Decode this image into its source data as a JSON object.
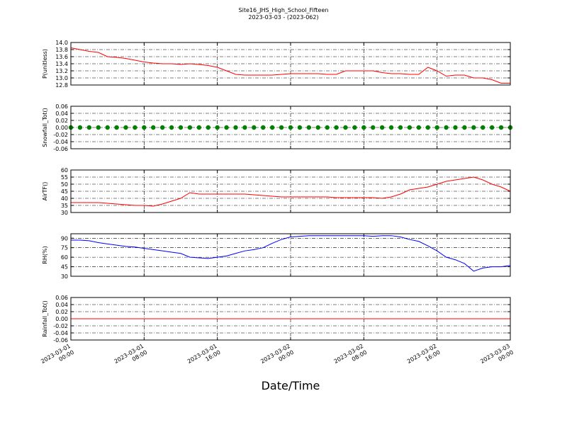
{
  "title": "Site16_JHS_High_School_Fifteen",
  "subtitle": "2023-03-03 - (2023-062)",
  "xlabel": "Date/Time",
  "chart_data": [
    {
      "type": "line",
      "ylabel": "P(unitless)",
      "color": "#ff0000",
      "x": [
        "2023-03-01 00:00",
        "2023-03-01 01:00",
        "2023-03-01 02:00",
        "2023-03-01 03:00",
        "2023-03-01 04:00",
        "2023-03-01 05:00",
        "2023-03-01 06:00",
        "2023-03-01 07:00",
        "2023-03-01 08:00",
        "2023-03-01 09:00",
        "2023-03-01 10:00",
        "2023-03-01 11:00",
        "2023-03-01 12:00",
        "2023-03-01 13:00",
        "2023-03-01 14:00",
        "2023-03-01 15:00",
        "2023-03-01 16:00",
        "2023-03-01 17:00",
        "2023-03-01 18:00",
        "2023-03-01 19:00",
        "2023-03-01 20:00",
        "2023-03-01 21:00",
        "2023-03-01 22:00",
        "2023-03-01 23:00",
        "2023-03-02 00:00",
        "2023-03-02 01:00",
        "2023-03-02 02:00",
        "2023-03-02 03:00",
        "2023-03-02 04:00",
        "2023-03-02 05:00",
        "2023-03-02 06:00",
        "2023-03-02 07:00",
        "2023-03-02 08:00",
        "2023-03-02 09:00",
        "2023-03-02 10:00",
        "2023-03-02 11:00",
        "2023-03-02 12:00",
        "2023-03-02 13:00",
        "2023-03-02 14:00",
        "2023-03-02 15:00",
        "2023-03-02 16:00",
        "2023-03-02 17:00",
        "2023-03-02 18:00",
        "2023-03-02 19:00",
        "2023-03-02 20:00",
        "2023-03-02 21:00",
        "2023-03-02 22:00",
        "2023-03-02 23:00",
        "2023-03-03 00:00"
      ],
      "values": [
        13.85,
        13.8,
        13.75,
        13.72,
        13.6,
        13.58,
        13.55,
        13.5,
        13.45,
        13.42,
        13.4,
        13.4,
        13.38,
        13.4,
        13.38,
        13.35,
        13.3,
        13.2,
        13.1,
        13.08,
        13.08,
        13.08,
        13.08,
        13.1,
        13.12,
        13.12,
        13.12,
        13.12,
        13.1,
        13.1,
        13.2,
        13.2,
        13.2,
        13.2,
        13.15,
        13.12,
        13.12,
        13.1,
        13.1,
        13.3,
        13.2,
        13.05,
        13.08,
        13.08,
        13.0,
        13.0,
        12.95,
        12.85,
        12.85
      ],
      "ylim": [
        12.8,
        14.0
      ],
      "yticks": [
        12.8,
        {
          "value": 13,
          "label": "13.0"
        },
        13.2,
        13.4,
        13.6,
        13.8,
        {
          "value": 14,
          "label": "14.0"
        }
      ]
    },
    {
      "type": "scatter",
      "ylabel": "Snowfall_Tot()",
      "color": "#008000",
      "x": [
        "2023-03-01 00:00",
        "2023-03-01 01:00",
        "2023-03-01 02:00",
        "2023-03-01 03:00",
        "2023-03-01 04:00",
        "2023-03-01 05:00",
        "2023-03-01 06:00",
        "2023-03-01 07:00",
        "2023-03-01 08:00",
        "2023-03-01 09:00",
        "2023-03-01 10:00",
        "2023-03-01 11:00",
        "2023-03-01 12:00",
        "2023-03-01 13:00",
        "2023-03-01 14:00",
        "2023-03-01 15:00",
        "2023-03-01 16:00",
        "2023-03-01 17:00",
        "2023-03-01 18:00",
        "2023-03-01 19:00",
        "2023-03-01 20:00",
        "2023-03-01 21:00",
        "2023-03-01 22:00",
        "2023-03-01 23:00",
        "2023-03-02 00:00",
        "2023-03-02 01:00",
        "2023-03-02 02:00",
        "2023-03-02 03:00",
        "2023-03-02 04:00",
        "2023-03-02 05:00",
        "2023-03-02 06:00",
        "2023-03-02 07:00",
        "2023-03-02 08:00",
        "2023-03-02 09:00",
        "2023-03-02 10:00",
        "2023-03-02 11:00",
        "2023-03-02 12:00",
        "2023-03-02 13:00",
        "2023-03-02 14:00",
        "2023-03-02 15:00",
        "2023-03-02 16:00",
        "2023-03-02 17:00",
        "2023-03-02 18:00",
        "2023-03-02 19:00",
        "2023-03-02 20:00",
        "2023-03-02 21:00",
        "2023-03-02 22:00",
        "2023-03-02 23:00",
        "2023-03-03 00:00"
      ],
      "values": [
        0,
        0,
        0,
        0,
        0,
        0,
        0,
        0,
        0,
        0,
        0,
        0,
        0,
        0,
        0,
        0,
        0,
        0,
        0,
        0,
        0,
        0,
        0,
        0,
        0,
        0,
        0,
        0,
        0,
        0,
        0,
        0,
        0,
        0,
        0,
        0,
        0,
        0,
        0,
        0,
        0,
        0,
        0,
        0,
        0,
        0,
        0,
        0,
        0
      ],
      "ylim": [
        -0.06,
        0.06
      ],
      "yticks": [
        {
          "value": -0.06,
          "label": "-0.06"
        },
        {
          "value": -0.04,
          "label": "-0.04"
        },
        {
          "value": -0.02,
          "label": "-0.02"
        },
        {
          "value": 0,
          "label": "0.00"
        },
        {
          "value": 0.02,
          "label": "0.02"
        },
        {
          "value": 0.04,
          "label": "0.04"
        },
        {
          "value": 0.06,
          "label": "0.06"
        }
      ]
    },
    {
      "type": "line",
      "ylabel": "AirTF()",
      "color": "#ff0000",
      "x": [
        "2023-03-01 00:00",
        "2023-03-01 01:00",
        "2023-03-01 02:00",
        "2023-03-01 03:00",
        "2023-03-01 04:00",
        "2023-03-01 05:00",
        "2023-03-01 06:00",
        "2023-03-01 07:00",
        "2023-03-01 08:00",
        "2023-03-01 09:00",
        "2023-03-01 10:00",
        "2023-03-01 11:00",
        "2023-03-01 12:00",
        "2023-03-01 13:00",
        "2023-03-01 14:00",
        "2023-03-01 15:00",
        "2023-03-01 16:00",
        "2023-03-01 17:00",
        "2023-03-01 18:00",
        "2023-03-01 19:00",
        "2023-03-01 20:00",
        "2023-03-01 21:00",
        "2023-03-01 22:00",
        "2023-03-01 23:00",
        "2023-03-02 00:00",
        "2023-03-02 01:00",
        "2023-03-02 02:00",
        "2023-03-02 03:00",
        "2023-03-02 04:00",
        "2023-03-02 05:00",
        "2023-03-02 06:00",
        "2023-03-02 07:00",
        "2023-03-02 08:00",
        "2023-03-02 09:00",
        "2023-03-02 10:00",
        "2023-03-02 11:00",
        "2023-03-02 12:00",
        "2023-03-02 13:00",
        "2023-03-02 14:00",
        "2023-03-02 15:00",
        "2023-03-02 16:00",
        "2023-03-02 17:00",
        "2023-03-02 18:00",
        "2023-03-02 19:00",
        "2023-03-02 20:00",
        "2023-03-02 21:00",
        "2023-03-02 22:00",
        "2023-03-02 23:00",
        "2023-03-03 00:00"
      ],
      "values": [
        37,
        37,
        37,
        37,
        36.5,
        36,
        35.5,
        35,
        35,
        34.5,
        36,
        38,
        40,
        44,
        43,
        43,
        43,
        43,
        43,
        43,
        42.5,
        42,
        41.5,
        41,
        41,
        41,
        41,
        41,
        41,
        40.5,
        40.5,
        40.5,
        40.5,
        40.5,
        40,
        41,
        43,
        46,
        47,
        48,
        50,
        52,
        53,
        54,
        55,
        53,
        50,
        48,
        45
      ],
      "ylim": [
        30,
        60
      ],
      "yticks": [
        30,
        35,
        40,
        45,
        50,
        55,
        60
      ]
    },
    {
      "type": "line",
      "ylabel": "RH(%)",
      "color": "#0000ff",
      "x": [
        "2023-03-01 00:00",
        "2023-03-01 01:00",
        "2023-03-01 02:00",
        "2023-03-01 03:00",
        "2023-03-01 04:00",
        "2023-03-01 05:00",
        "2023-03-01 06:00",
        "2023-03-01 07:00",
        "2023-03-01 08:00",
        "2023-03-01 09:00",
        "2023-03-01 10:00",
        "2023-03-01 11:00",
        "2023-03-01 12:00",
        "2023-03-01 13:00",
        "2023-03-01 14:00",
        "2023-03-01 15:00",
        "2023-03-01 16:00",
        "2023-03-01 17:00",
        "2023-03-01 18:00",
        "2023-03-01 19:00",
        "2023-03-01 20:00",
        "2023-03-01 21:00",
        "2023-03-01 22:00",
        "2023-03-01 23:00",
        "2023-03-02 00:00",
        "2023-03-02 01:00",
        "2023-03-02 02:00",
        "2023-03-02 03:00",
        "2023-03-02 04:00",
        "2023-03-02 05:00",
        "2023-03-02 06:00",
        "2023-03-02 07:00",
        "2023-03-02 08:00",
        "2023-03-02 09:00",
        "2023-03-02 10:00",
        "2023-03-02 11:00",
        "2023-03-02 12:00",
        "2023-03-02 13:00",
        "2023-03-02 14:00",
        "2023-03-02 15:00",
        "2023-03-02 16:00",
        "2023-03-02 17:00",
        "2023-03-02 18:00",
        "2023-03-02 19:00",
        "2023-03-02 20:00",
        "2023-03-02 21:00",
        "2023-03-02 22:00",
        "2023-03-02 23:00",
        "2023-03-03 00:00"
      ],
      "values": [
        87,
        87,
        86,
        83,
        81,
        79,
        77,
        76,
        74,
        72,
        70,
        68,
        66,
        60,
        59,
        58,
        60,
        62,
        66,
        70,
        72,
        75,
        82,
        88,
        92,
        93,
        94,
        94,
        94,
        94,
        94,
        94,
        94,
        93,
        94,
        94,
        92,
        88,
        85,
        78,
        70,
        60,
        56,
        50,
        38,
        43,
        45,
        45,
        47
      ],
      "ylim": [
        30,
        97
      ],
      "yticks": [
        30,
        45,
        60,
        75,
        90
      ]
    },
    {
      "type": "line",
      "ylabel": "Rainfall_Tot()",
      "color": "#ff0000",
      "x": [
        "2023-03-01 00:00",
        "2023-03-01 01:00",
        "2023-03-01 02:00",
        "2023-03-01 03:00",
        "2023-03-01 04:00",
        "2023-03-01 05:00",
        "2023-03-01 06:00",
        "2023-03-01 07:00",
        "2023-03-01 08:00",
        "2023-03-01 09:00",
        "2023-03-01 10:00",
        "2023-03-01 11:00",
        "2023-03-01 12:00",
        "2023-03-01 13:00",
        "2023-03-01 14:00",
        "2023-03-01 15:00",
        "2023-03-01 16:00",
        "2023-03-01 17:00",
        "2023-03-01 18:00",
        "2023-03-01 19:00",
        "2023-03-01 20:00",
        "2023-03-01 21:00",
        "2023-03-01 22:00",
        "2023-03-01 23:00",
        "2023-03-02 00:00",
        "2023-03-02 01:00",
        "2023-03-02 02:00",
        "2023-03-02 03:00",
        "2023-03-02 04:00",
        "2023-03-02 05:00",
        "2023-03-02 06:00",
        "2023-03-02 07:00",
        "2023-03-02 08:00",
        "2023-03-02 09:00",
        "2023-03-02 10:00",
        "2023-03-02 11:00",
        "2023-03-02 12:00",
        "2023-03-02 13:00",
        "2023-03-02 14:00",
        "2023-03-02 15:00",
        "2023-03-02 16:00",
        "2023-03-02 17:00",
        "2023-03-02 18:00",
        "2023-03-02 19:00",
        "2023-03-02 20:00",
        "2023-03-02 21:00",
        "2023-03-02 22:00",
        "2023-03-02 23:00",
        "2023-03-03 00:00"
      ],
      "values": [
        0,
        0,
        0,
        0,
        0,
        0,
        0,
        0,
        0,
        0,
        0,
        0,
        0,
        0,
        0,
        0,
        0,
        0,
        0,
        0,
        0,
        0,
        0,
        0,
        0,
        0,
        0,
        0,
        0,
        0,
        0,
        0,
        0,
        0,
        0,
        0,
        0,
        0,
        0,
        0,
        0,
        0,
        0,
        0,
        0,
        0,
        0,
        0,
        0
      ],
      "ylim": [
        -0.06,
        0.06
      ],
      "yticks": [
        {
          "value": -0.06,
          "label": "-0.06"
        },
        {
          "value": -0.04,
          "label": "-0.04"
        },
        {
          "value": -0.02,
          "label": "-0.02"
        },
        {
          "value": 0,
          "label": "0.00"
        },
        {
          "value": 0.02,
          "label": "0.02"
        },
        {
          "value": 0.04,
          "label": "0.04"
        },
        {
          "value": 0.06,
          "label": "0.06"
        }
      ],
      "xlim": [
        "2023-03-01 00:00",
        "2023-03-03 00:00"
      ],
      "xticks": [
        "2023-03-01 00:00",
        "2023-03-01 08:00",
        "2023-03-01 16:00",
        "2023-03-02 00:00",
        "2023-03-02 08:00",
        "2023-03-02 16:00",
        "2023-03-03 00:00"
      ]
    }
  ]
}
